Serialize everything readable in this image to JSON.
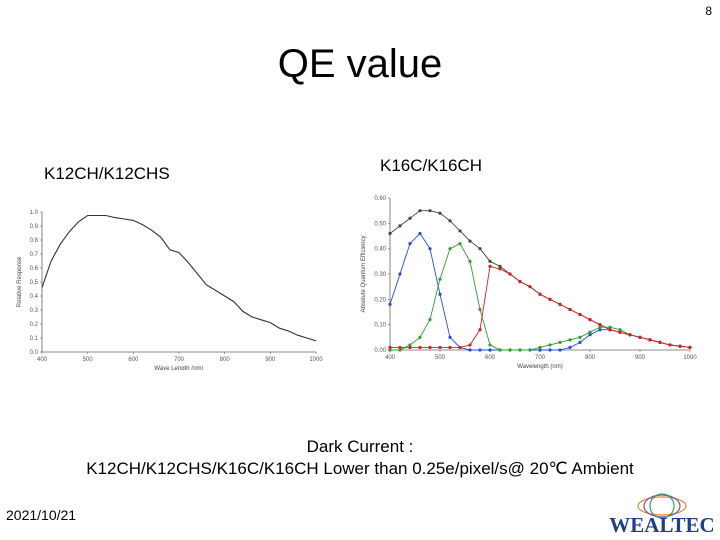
{
  "slide": {
    "page_number": "8",
    "title": "QE value",
    "left_chart_label": "K12CH/K12CHS",
    "right_chart_label": "K16C/K16CH",
    "caption_line1": "Dark Current :",
    "caption_line2": "K12CH/K12CHS/K16C/K16CH Lower than 0.25e/pixel/s@ 20℃ Ambient",
    "date": "2021/10/21",
    "logo_text": "WEALTEC"
  },
  "chart_data": [
    {
      "type": "line",
      "title": "K12CH/K12CHS",
      "xlabel": "Wave Length (nm)",
      "ylabel": "Relative Response",
      "xlim": [
        400,
        1000
      ],
      "ylim": [
        0,
        1.0
      ],
      "x_ticks": [
        "400",
        "500",
        "600",
        "700",
        "800",
        "900",
        "1000"
      ],
      "y_ticks": [
        "0.0",
        "0.1",
        "0.2",
        "0.3",
        "0.4",
        "0.5",
        "0.6",
        "0.7",
        "0.8",
        "0.9",
        "1.0"
      ],
      "grid": false,
      "color": "#333333",
      "series": [
        {
          "x": [
            400,
            420,
            440,
            460,
            480,
            500,
            520,
            540,
            560,
            580,
            600,
            620,
            640,
            660,
            680,
            700,
            720,
            740,
            760,
            780,
            800,
            820,
            840,
            860,
            880,
            900,
            920,
            940,
            960,
            980,
            1000
          ],
          "values": [
            0.46,
            0.65,
            0.77,
            0.86,
            0.93,
            0.975,
            0.975,
            0.975,
            0.96,
            0.95,
            0.94,
            0.91,
            0.87,
            0.82,
            0.73,
            0.71,
            0.64,
            0.56,
            0.48,
            0.44,
            0.4,
            0.36,
            0.29,
            0.25,
            0.23,
            0.21,
            0.17,
            0.15,
            0.12,
            0.1,
            0.08
          ]
        }
      ]
    },
    {
      "type": "line",
      "title": "K16C/K16CH",
      "xlabel": "Wavelength (nm)",
      "ylabel": "Absolute Quantum Efficiency",
      "xlim": [
        400,
        1000
      ],
      "ylim": [
        0,
        0.6
      ],
      "x_ticks": [
        "400",
        "500",
        "600",
        "700",
        "800",
        "900",
        "1000"
      ],
      "y_ticks": [
        "0.00",
        "0.10",
        "0.20",
        "0.30",
        "0.40",
        "0.50",
        "0.60"
      ],
      "grid": false,
      "series": [
        {
          "color": "#444444",
          "x": [
            400,
            420,
            440,
            460,
            480,
            500,
            520,
            540,
            560,
            580,
            600,
            620,
            640,
            660,
            680,
            700,
            720,
            740,
            760,
            780,
            800,
            820,
            840,
            860,
            880,
            900,
            920,
            940,
            960,
            980,
            1000
          ],
          "values": [
            0.46,
            0.49,
            0.52,
            0.55,
            0.55,
            0.54,
            0.51,
            0.47,
            0.43,
            0.4,
            0.35,
            0.33,
            0.3,
            0.27,
            0.25,
            0.22,
            0.2,
            0.18,
            0.16,
            0.14,
            0.12,
            0.1,
            0.08,
            0.07,
            0.06,
            0.05,
            0.04,
            0.03,
            0.02,
            0.015,
            0.01
          ]
        },
        {
          "color": "#1f4fd8",
          "x": [
            400,
            420,
            440,
            460,
            480,
            500,
            520,
            540,
            560,
            580,
            600,
            620,
            640,
            660,
            680,
            700,
            720,
            740,
            760,
            780,
            800,
            820,
            840,
            860,
            880,
            900,
            920,
            940,
            960,
            980,
            1000
          ],
          "values": [
            0.18,
            0.3,
            0.42,
            0.46,
            0.4,
            0.22,
            0.05,
            0.01,
            0.0,
            0.0,
            0.0,
            0.0,
            0.0,
            0.0,
            0.0,
            0.0,
            0.0,
            0.0,
            0.01,
            0.03,
            0.06,
            0.08,
            0.08,
            0.07,
            0.06,
            0.05,
            0.04,
            0.03,
            0.02,
            0.015,
            0.01
          ]
        },
        {
          "color": "#2e9e2e",
          "x": [
            400,
            420,
            440,
            460,
            480,
            500,
            520,
            540,
            560,
            580,
            600,
            620,
            640,
            660,
            680,
            700,
            720,
            740,
            760,
            780,
            800,
            820,
            840,
            860,
            880,
            900,
            920,
            940,
            960,
            980,
            1000
          ],
          "values": [
            0.0,
            0.0,
            0.02,
            0.05,
            0.12,
            0.28,
            0.4,
            0.42,
            0.35,
            0.16,
            0.02,
            0.0,
            0.0,
            0.0,
            0.0,
            0.01,
            0.02,
            0.03,
            0.04,
            0.05,
            0.07,
            0.09,
            0.09,
            0.08,
            0.06,
            0.05,
            0.04,
            0.03,
            0.02,
            0.015,
            0.01
          ]
        },
        {
          "color": "#d62020",
          "x": [
            400,
            420,
            440,
            460,
            480,
            500,
            520,
            540,
            560,
            580,
            600,
            620,
            640,
            660,
            680,
            700,
            720,
            740,
            760,
            780,
            800,
            820,
            840,
            860,
            880,
            900,
            920,
            940,
            960,
            980,
            1000
          ],
          "values": [
            0.01,
            0.01,
            0.01,
            0.01,
            0.01,
            0.01,
            0.01,
            0.01,
            0.02,
            0.08,
            0.33,
            0.32,
            0.3,
            0.27,
            0.25,
            0.22,
            0.2,
            0.18,
            0.16,
            0.14,
            0.12,
            0.1,
            0.08,
            0.07,
            0.06,
            0.05,
            0.04,
            0.03,
            0.02,
            0.015,
            0.01
          ]
        }
      ]
    }
  ]
}
